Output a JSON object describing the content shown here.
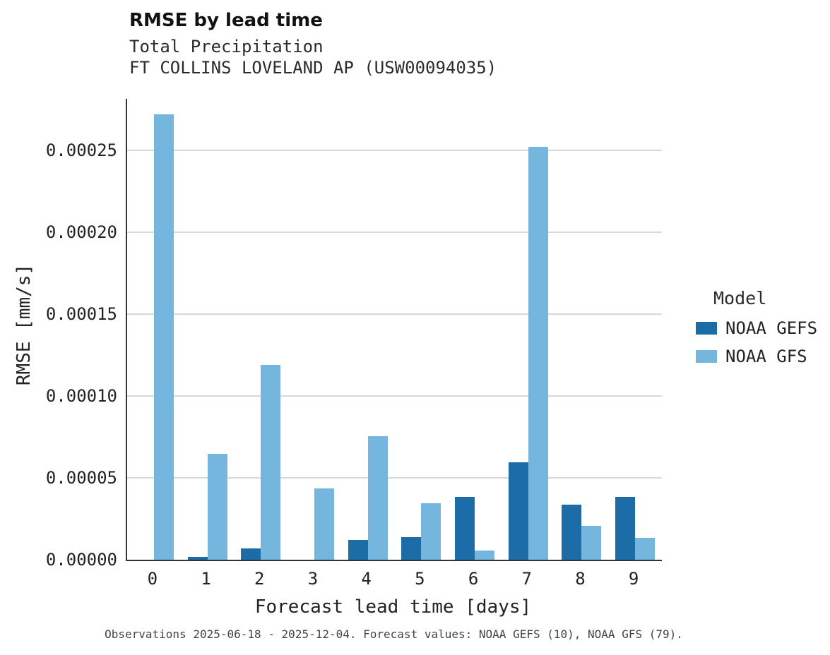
{
  "header": {
    "title": "RMSE by lead time",
    "subtitle1": "Total Precipitation",
    "subtitle2": "FT COLLINS LOVELAND AP (USW00094035)"
  },
  "chart_data": {
    "type": "bar",
    "title": "RMSE by lead time",
    "subtitle": [
      "Total Precipitation",
      "FT COLLINS LOVELAND AP (USW00094035)"
    ],
    "xlabel": "Forecast lead time [days]",
    "ylabel": "RMSE [mm/s]",
    "categories": [
      "0",
      "1",
      "2",
      "3",
      "4",
      "5",
      "6",
      "7",
      "8",
      "9"
    ],
    "series": [
      {
        "name": "NOAA GEFS",
        "color": "#1c6ca8",
        "values": [
          0,
          1.8e-06,
          7e-06,
          0,
          1.2e-05,
          1.4e-05,
          3.85e-05,
          5.95e-05,
          3.35e-05,
          3.85e-05
        ]
      },
      {
        "name": "NOAA GFS",
        "color": "#74b6dd",
        "values": [
          0.000272,
          6.45e-05,
          0.000119,
          4.35e-05,
          7.55e-05,
          3.45e-05,
          5.8e-06,
          0.000252,
          2.05e-05,
          1.33e-05
        ]
      }
    ],
    "ylim": [
      0,
      0.0002815
    ],
    "yticks": [
      0,
      5e-05,
      0.0001,
      0.00015,
      0.0002,
      0.00025
    ],
    "ytick_labels": [
      "0.00000",
      "0.00005",
      "0.00010",
      "0.00015",
      "0.00020",
      "0.00025"
    ],
    "legend_title": "Model",
    "legend_position": "right",
    "grid": true,
    "grid_color": "#d9d9d9",
    "background": "#ffffff"
  },
  "footer": {
    "caption": "Observations 2025-06-18 - 2025-12-04. Forecast values: NOAA GEFS (10), NOAA GFS (79)."
  }
}
